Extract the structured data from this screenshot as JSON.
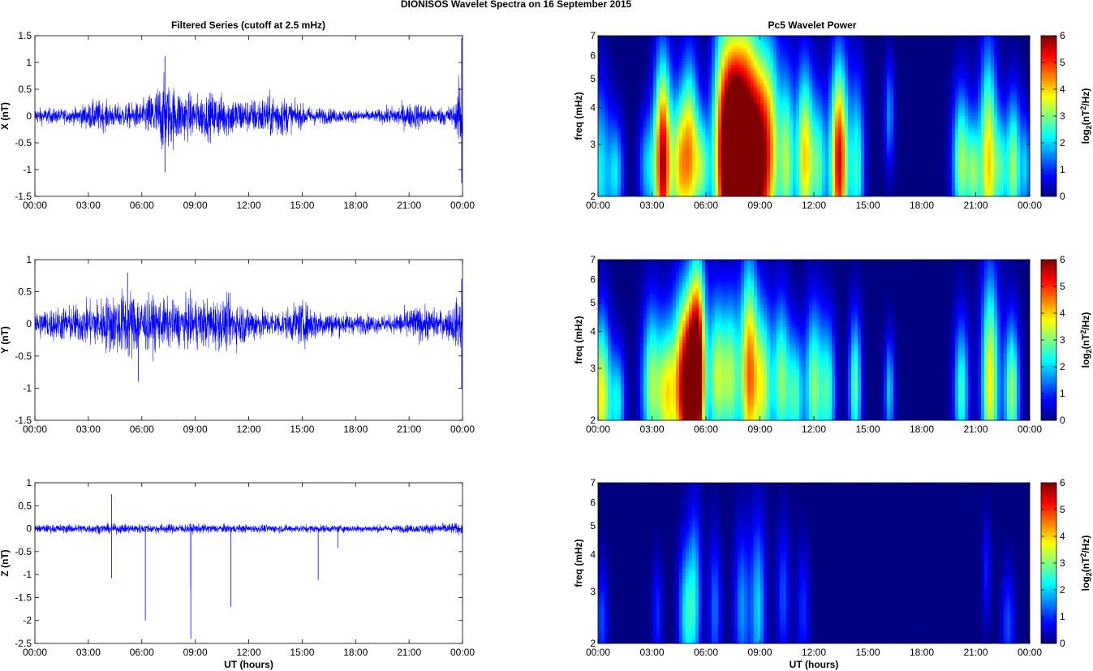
{
  "figure_title": "DIONISOS Wavelet Spectra on 16 September 2015",
  "left_title": "Filtered Series (cutoff at 2.5 mHz)",
  "right_title": "Pc5 Wavelet Power",
  "colors": {
    "trace": "#0000ff",
    "heat_low": "#00008f",
    "heat_high": "#800000"
  },
  "chart_data": [
    {
      "type": "line",
      "panel": "X",
      "ylabel": "X (nT)",
      "xlabel": "",
      "ylim": [
        -1.5,
        1.5
      ],
      "yticks": [
        "1.5",
        "1",
        "0.5",
        "0",
        "-0.5",
        "-1",
        "-1.5"
      ],
      "ytick_values": [
        1.5,
        1,
        0.5,
        0,
        -0.5,
        -1,
        -1.5
      ],
      "xticks": [
        "00:00",
        "03:00",
        "06:00",
        "09:00",
        "12:00",
        "15:00",
        "18:00",
        "21:00",
        "00:00"
      ],
      "xlim_hours": [
        0,
        24
      ],
      "envelope": {
        "hours": [
          0,
          2,
          3.5,
          4.5,
          6,
          7.2,
          8,
          9,
          10,
          11,
          12,
          13,
          13.7,
          14.5,
          15.5,
          17,
          19,
          20.5,
          21.5,
          22.5,
          23.6,
          24
        ],
        "amp": [
          0.18,
          0.15,
          0.35,
          0.25,
          0.3,
          0.8,
          0.6,
          0.45,
          0.5,
          0.45,
          0.35,
          0.45,
          0.5,
          0.3,
          0.2,
          0.15,
          0.12,
          0.25,
          0.3,
          0.18,
          0.25,
          1.2
        ]
      },
      "spikes": [
        {
          "hour": 7.3,
          "value": 1.12
        },
        {
          "hour": 7.3,
          "value": -1.05
        },
        {
          "hour": 23.95,
          "value": 1.45
        },
        {
          "hour": 23.95,
          "value": -1.25
        }
      ]
    },
    {
      "type": "line",
      "panel": "Y",
      "ylabel": "Y (nT)",
      "xlabel": "",
      "ylim": [
        -1.5,
        1
      ],
      "yticks": [
        "1",
        "0.5",
        "0",
        "-0.5",
        "-1",
        "-1.5"
      ],
      "ytick_values": [
        1,
        0.5,
        0,
        -0.5,
        -1,
        -1.5
      ],
      "xticks": [
        "00:00",
        "03:00",
        "06:00",
        "09:00",
        "12:00",
        "15:00",
        "18:00",
        "21:00",
        "00:00"
      ],
      "xlim_hours": [
        0,
        24
      ],
      "envelope": {
        "hours": [
          0,
          1,
          2.5,
          3.5,
          4.5,
          5.3,
          6,
          7,
          8,
          9,
          10,
          11,
          12,
          13,
          14,
          15,
          16,
          18,
          20,
          21,
          22,
          23,
          23.9,
          24
        ],
        "amp": [
          0.25,
          0.3,
          0.35,
          0.45,
          0.55,
          0.65,
          0.5,
          0.45,
          0.4,
          0.45,
          0.45,
          0.45,
          0.35,
          0.25,
          0.25,
          0.4,
          0.25,
          0.18,
          0.15,
          0.3,
          0.3,
          0.22,
          0.5,
          0.6
        ]
      },
      "spikes": [
        {
          "hour": 5.2,
          "value": 0.8
        },
        {
          "hour": 5.8,
          "value": -0.9
        },
        {
          "hour": 23.95,
          "value": 0.7
        },
        {
          "hour": 23.95,
          "value": -1.0
        }
      ]
    },
    {
      "type": "line",
      "panel": "Z",
      "ylabel": "Z (nT)",
      "xlabel": "UT (hours)",
      "ylim": [
        -2.5,
        1
      ],
      "yticks": [
        "1",
        "0.5",
        "0",
        "-0.5",
        "-1",
        "-1.5",
        "-2",
        "-2.5"
      ],
      "ytick_values": [
        1,
        0.5,
        0,
        -0.5,
        -1,
        -1.5,
        -2,
        -2.5
      ],
      "xticks": [
        "00:00",
        "03:00",
        "06:00",
        "09:00",
        "12:00",
        "15:00",
        "18:00",
        "21:00",
        "00:00"
      ],
      "xlim_hours": [
        0,
        24
      ],
      "envelope": {
        "hours": [
          0,
          3,
          6,
          9,
          12,
          15,
          18,
          21,
          24
        ],
        "amp": [
          0.1,
          0.12,
          0.12,
          0.12,
          0.1,
          0.1,
          0.09,
          0.1,
          0.15
        ]
      },
      "spikes": [
        {
          "hour": 4.3,
          "value": 0.75
        },
        {
          "hour": 4.3,
          "value": -1.08
        },
        {
          "hour": 6.2,
          "value": -2.0
        },
        {
          "hour": 8.75,
          "value": -2.4
        },
        {
          "hour": 8.75,
          "value": -1.3
        },
        {
          "hour": 11.0,
          "value": -1.7
        },
        {
          "hour": 15.9,
          "value": -1.12
        },
        {
          "hour": 17.0,
          "value": -0.42
        }
      ]
    },
    {
      "type": "heatmap",
      "panel": "X",
      "ylabel": "freq (mHz)",
      "colorbar_label": "log2(nT2/Hz)",
      "colorbar_ticks": [
        "6",
        "5",
        "4",
        "3",
        "2",
        "1",
        "0"
      ],
      "colorbar_range": [
        0,
        6
      ],
      "yscale": "log",
      "ylim": [
        2,
        7
      ],
      "yticks": [
        "7",
        "6",
        "5",
        "4",
        "3",
        "2"
      ],
      "ytick_values": [
        7,
        6,
        5,
        4,
        3,
        2
      ],
      "xticks": [
        "00:00",
        "03:00",
        "06:00",
        "09:00",
        "12:00",
        "15:00",
        "18:00",
        "21:00",
        "00:00"
      ],
      "xlim_hours": [
        0,
        24
      ],
      "blobs": [
        [
          0.1,
          2.4,
          2.2,
          0.4,
          0.5
        ],
        [
          1.0,
          2.4,
          2.0,
          0.3,
          0.3
        ],
        [
          2.7,
          2.5,
          1.8,
          0.3,
          0.3
        ],
        [
          3.6,
          2.6,
          5.8,
          0.35,
          0.55
        ],
        [
          4.5,
          2.5,
          3.0,
          0.3,
          0.4
        ],
        [
          5.1,
          2.8,
          4.0,
          0.35,
          0.5
        ],
        [
          5.8,
          2.5,
          2.5,
          0.3,
          0.3
        ],
        [
          7.0,
          2.8,
          5.5,
          0.45,
          0.7
        ],
        [
          7.6,
          2.6,
          5.7,
          0.35,
          0.6
        ],
        [
          8.2,
          2.9,
          5.5,
          0.4,
          0.7
        ],
        [
          8.9,
          2.6,
          5.2,
          0.4,
          0.6
        ],
        [
          9.6,
          2.9,
          3.5,
          0.4,
          0.6
        ],
        [
          10.5,
          2.6,
          3.0,
          0.3,
          0.5
        ],
        [
          11.5,
          2.7,
          4.0,
          0.35,
          0.5
        ],
        [
          12.3,
          2.5,
          2.5,
          0.3,
          0.4
        ],
        [
          13.4,
          2.6,
          5.5,
          0.35,
          0.55
        ],
        [
          14.4,
          2.5,
          2.5,
          0.3,
          0.5
        ],
        [
          16.2,
          3.8,
          1.6,
          0.2,
          0.3
        ],
        [
          20.2,
          2.6,
          3.2,
          0.35,
          0.4
        ],
        [
          20.9,
          2.4,
          2.5,
          0.25,
          0.3
        ],
        [
          21.7,
          2.6,
          4.0,
          0.35,
          0.6
        ],
        [
          22.4,
          2.5,
          2.0,
          0.25,
          0.3
        ],
        [
          23.1,
          2.5,
          3.2,
          0.3,
          0.4
        ],
        [
          23.8,
          2.5,
          1.8,
          0.2,
          0.3
        ]
      ]
    },
    {
      "type": "heatmap",
      "panel": "Y",
      "ylabel": "freq (mHz)",
      "colorbar_label": "log2(nT2/Hz)",
      "colorbar_ticks": [
        "6",
        "5",
        "4",
        "3",
        "2",
        "1",
        "0"
      ],
      "colorbar_range": [
        0,
        6
      ],
      "yscale": "log",
      "ylim": [
        2,
        7
      ],
      "yticks": [
        "7",
        "6",
        "5",
        "4",
        "3",
        "2"
      ],
      "ytick_values": [
        7,
        6,
        5,
        4,
        3,
        2
      ],
      "xticks": [
        "00:00",
        "03:00",
        "06:00",
        "09:00",
        "12:00",
        "15:00",
        "18:00",
        "21:00",
        "00:00"
      ],
      "xlim_hours": [
        0,
        24
      ],
      "blobs": [
        [
          0.2,
          2.4,
          3.8,
          0.35,
          0.45
        ],
        [
          1.1,
          2.3,
          2.2,
          0.3,
          0.3
        ],
        [
          3.0,
          2.6,
          3.2,
          0.4,
          0.45
        ],
        [
          3.8,
          2.4,
          3.0,
          0.3,
          0.4
        ],
        [
          4.6,
          2.6,
          4.2,
          0.4,
          0.5
        ],
        [
          5.2,
          2.5,
          5.2,
          0.35,
          0.55
        ],
        [
          5.6,
          3.0,
          4.6,
          0.3,
          0.6
        ],
        [
          6.6,
          2.8,
          3.2,
          0.35,
          0.45
        ],
        [
          7.4,
          2.8,
          3.0,
          0.35,
          0.45
        ],
        [
          8.4,
          2.9,
          4.5,
          0.35,
          0.6
        ],
        [
          9.2,
          2.6,
          3.2,
          0.35,
          0.45
        ],
        [
          10.2,
          2.7,
          3.0,
          0.35,
          0.45
        ],
        [
          11.0,
          2.4,
          2.5,
          0.3,
          0.35
        ],
        [
          12.0,
          2.6,
          3.0,
          0.35,
          0.45
        ],
        [
          12.8,
          2.5,
          2.5,
          0.3,
          0.4
        ],
        [
          14.3,
          2.6,
          2.8,
          0.25,
          0.4
        ],
        [
          16.2,
          2.5,
          2.0,
          0.2,
          0.3
        ],
        [
          20.2,
          2.5,
          2.6,
          0.3,
          0.4
        ],
        [
          21.8,
          2.7,
          3.8,
          0.35,
          0.6
        ],
        [
          23.0,
          2.5,
          3.2,
          0.3,
          0.4
        ]
      ]
    },
    {
      "type": "heatmap",
      "panel": "Z",
      "ylabel": "freq (mHz)",
      "xlabel": "UT (hours)",
      "colorbar_label": "log2(nT2/Hz)",
      "colorbar_ticks": [
        "6",
        "5",
        "4",
        "3",
        "2",
        "1",
        "0"
      ],
      "colorbar_range": [
        0,
        6
      ],
      "yscale": "log",
      "ylim": [
        2,
        7
      ],
      "yticks": [
        "7",
        "6",
        "5",
        "4",
        "3",
        "2"
      ],
      "ytick_values": [
        7,
        6,
        5,
        4,
        3,
        2
      ],
      "xticks": [
        "00:00",
        "03:00",
        "06:00",
        "09:00",
        "12:00",
        "15:00",
        "18:00",
        "21:00",
        "00:00"
      ],
      "xlim_hours": [
        0,
        24
      ],
      "blobs": [
        [
          0.2,
          2.4,
          1.2,
          0.25,
          0.3
        ],
        [
          3.3,
          2.5,
          1.0,
          0.2,
          0.3
        ],
        [
          4.9,
          2.5,
          2.2,
          0.3,
          0.4
        ],
        [
          5.4,
          2.9,
          1.8,
          0.25,
          0.5
        ],
        [
          6.5,
          2.6,
          1.4,
          0.25,
          0.4
        ],
        [
          8.0,
          2.6,
          1.6,
          0.3,
          0.45
        ],
        [
          8.9,
          2.6,
          2.0,
          0.3,
          0.5
        ],
        [
          10.3,
          2.9,
          1.2,
          0.25,
          0.4
        ],
        [
          11.4,
          2.6,
          1.0,
          0.25,
          0.35
        ],
        [
          21.6,
          3.5,
          0.9,
          0.15,
          0.3
        ],
        [
          22.8,
          2.3,
          1.2,
          0.25,
          0.3
        ]
      ]
    }
  ]
}
